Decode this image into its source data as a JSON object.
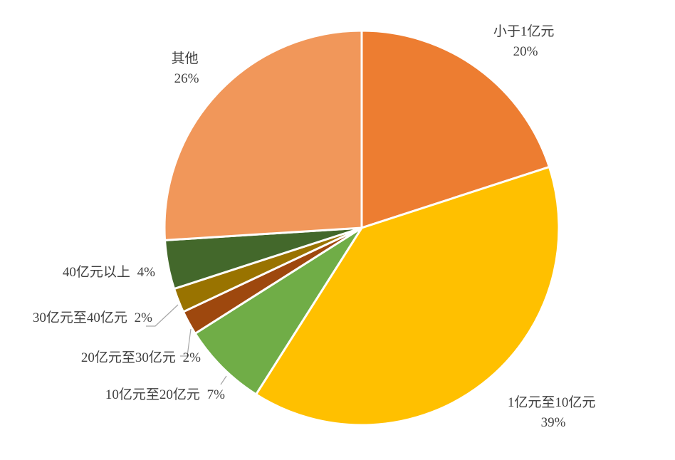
{
  "chart_data": {
    "type": "pie",
    "title": "",
    "slices": [
      {
        "label": "小于1亿元",
        "percent_label": "20%",
        "value": 20,
        "color": "#ED7D31"
      },
      {
        "label": "1亿元至10亿元",
        "percent_label": "39%",
        "value": 39,
        "color": "#FFC000"
      },
      {
        "label": "10亿元至20亿元",
        "percent_label": "7%",
        "value": 7,
        "color": "#70AD47"
      },
      {
        "label": "20亿元至30亿元",
        "percent_label": "2%",
        "value": 2,
        "color": "#9E480E"
      },
      {
        "label": "30亿元至40亿元",
        "percent_label": "2%",
        "value": 2,
        "color": "#997300"
      },
      {
        "label": "40亿元以上",
        "percent_label": "4%",
        "value": 4,
        "color": "#43682B"
      },
      {
        "label": "其他",
        "percent_label": "26%",
        "value": 26,
        "color": "#F1975A"
      }
    ],
    "legend": "none",
    "data_labels": "category-and-percent"
  }
}
